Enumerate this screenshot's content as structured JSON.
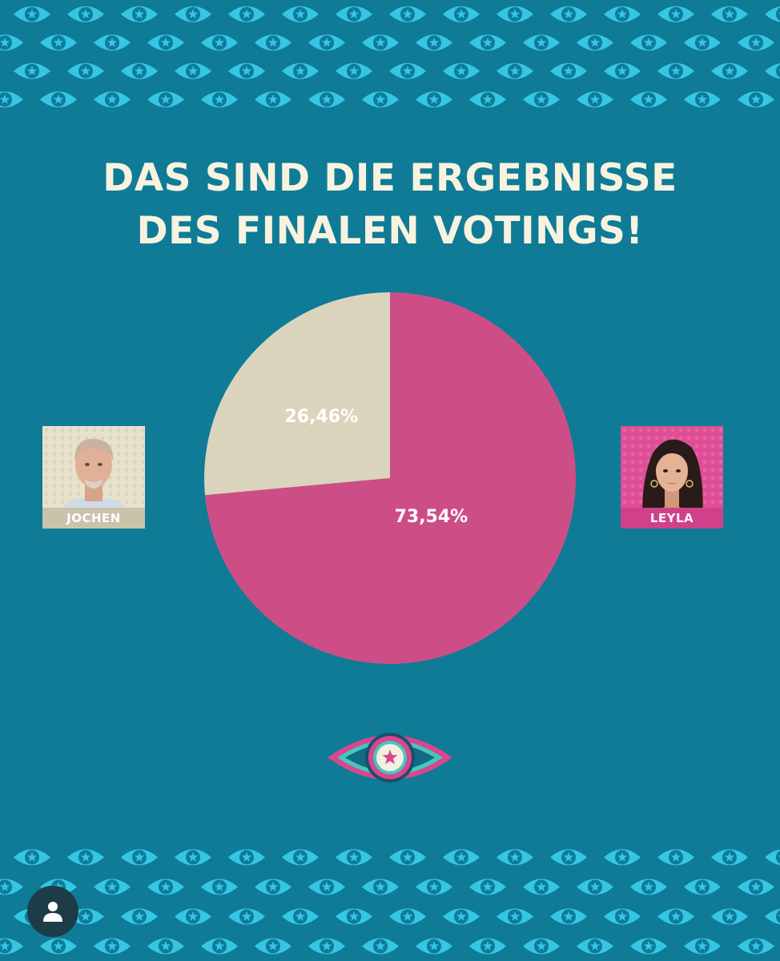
{
  "title": {
    "line1": "DAS SIND DIE ERGEBNISSE",
    "line2": "DES FINALEN VOTINGS!"
  },
  "chart_data": {
    "type": "pie",
    "series": [
      {
        "name": "JOCHEN",
        "value": 26.46,
        "label": "26,46%",
        "color": "#dbd4bc"
      },
      {
        "name": "LEYLA",
        "value": 73.54,
        "label": "73,54%",
        "color": "#cd4e87"
      }
    ]
  },
  "candidates": {
    "left": {
      "name": "JOCHEN"
    },
    "right": {
      "name": "LEYLA"
    }
  },
  "colors": {
    "background": "#0f7b97",
    "pattern_eye": "#35c6e4",
    "title_text": "#f8f3df",
    "logo_pink": "#d6478f",
    "logo_teal": "#47c6bb"
  },
  "icons": {
    "pattern": "eye-star-icon",
    "logo": "big-brother-eye-logo-icon",
    "profile": "user-icon"
  }
}
